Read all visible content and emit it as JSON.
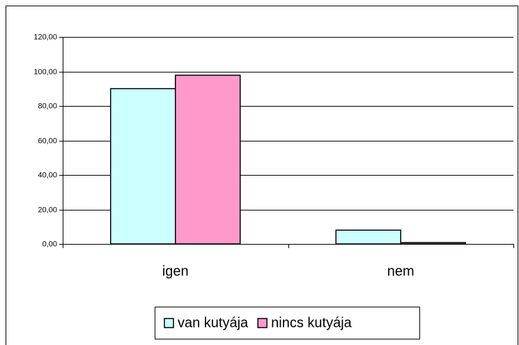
{
  "chart_data": {
    "type": "bar",
    "categories": [
      "igen",
      "nem"
    ],
    "series": [
      {
        "name": "van kutyája",
        "color": "#ccffff",
        "values": [
          90,
          8
        ]
      },
      {
        "name": "nincs kutyája",
        "color": "#ff99cc",
        "values": [
          97.8,
          0.8
        ]
      }
    ],
    "ylim": [
      0,
      120
    ],
    "yticks": [
      {
        "value": 0,
        "label": "0,00"
      },
      {
        "value": 20,
        "label": "20,00"
      },
      {
        "value": 40,
        "label": "40,00"
      },
      {
        "value": 60,
        "label": "60,00"
      },
      {
        "value": 80,
        "label": "80,00"
      },
      {
        "value": 100,
        "label": "100,00"
      },
      {
        "value": 120,
        "label": "120,00"
      }
    ],
    "grid": true,
    "legend": "bottom"
  }
}
